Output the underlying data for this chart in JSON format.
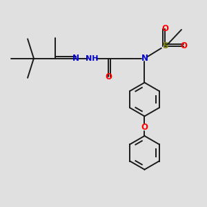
{
  "background_color": "#e0e0e0",
  "bond_color": "#1a1a1a",
  "atom_colors": {
    "N": "#0000cc",
    "O": "#ff0000",
    "S": "#808000",
    "H": "#408080",
    "C": "#1a1a1a"
  },
  "figsize": [
    3.0,
    3.0
  ],
  "dpi": 100
}
